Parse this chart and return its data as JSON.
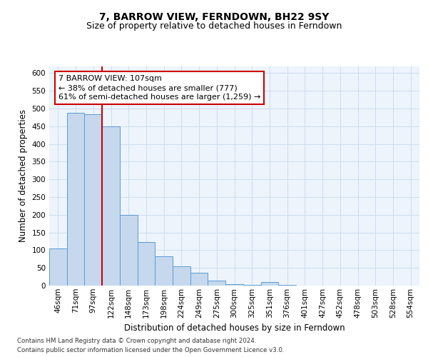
{
  "title": "7, BARROW VIEW, FERNDOWN, BH22 9SY",
  "subtitle": "Size of property relative to detached houses in Ferndown",
  "xlabel": "Distribution of detached houses by size in Ferndown",
  "ylabel": "Number of detached properties",
  "categories": [
    "46sqm",
    "71sqm",
    "97sqm",
    "122sqm",
    "148sqm",
    "173sqm",
    "198sqm",
    "224sqm",
    "249sqm",
    "275sqm",
    "300sqm",
    "325sqm",
    "351sqm",
    "376sqm",
    "401sqm",
    "427sqm",
    "452sqm",
    "478sqm",
    "503sqm",
    "528sqm",
    "554sqm"
  ],
  "values": [
    105,
    487,
    483,
    450,
    200,
    122,
    82,
    55,
    37,
    15,
    5,
    2,
    10,
    2,
    1,
    0,
    0,
    0,
    0,
    0,
    0
  ],
  "bar_color": "#c5d8ed",
  "bar_edge_color": "#5b9bd5",
  "highlight_label_line1": "7 BARROW VIEW: 107sqm",
  "highlight_label_line2": "← 38% of detached houses are smaller (777)",
  "highlight_label_line3": "61% of semi-detached houses are larger (1,259) →",
  "annotation_box_color": "#ffffff",
  "annotation_box_edge_color": "#cc0000",
  "vline_color": "#cc0000",
  "vline_x": 2.5,
  "ylim": [
    0,
    620
  ],
  "yticks": [
    0,
    50,
    100,
    150,
    200,
    250,
    300,
    350,
    400,
    450,
    500,
    550,
    600
  ],
  "grid_color": "#ccddf0",
  "background_color": "#edf4fb",
  "footer_line1": "Contains HM Land Registry data © Crown copyright and database right 2024.",
  "footer_line2": "Contains public sector information licensed under the Open Government Licence v3.0.",
  "title_fontsize": 10,
  "subtitle_fontsize": 9,
  "tick_fontsize": 7.5,
  "label_fontsize": 8.5,
  "annotation_fontsize": 8
}
